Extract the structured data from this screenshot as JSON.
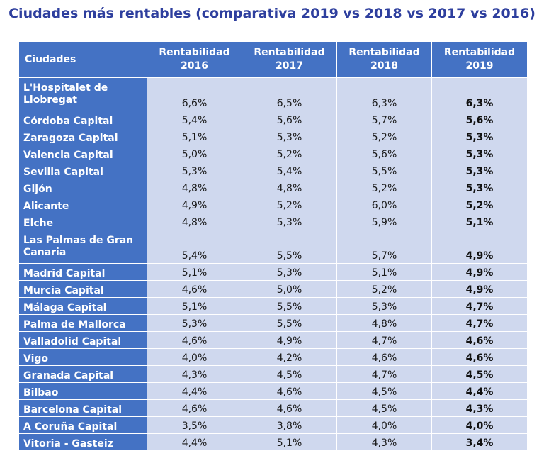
{
  "title": "Ciudades más rentables (comparativa 2019 vs 2018 vs 2017 vs 2016)",
  "colors": {
    "header_bg": "#4472c4",
    "cell_bg": "#cfd8ee",
    "title": "#2e3f9e"
  },
  "chart_data": {
    "type": "table",
    "title": "Ciudades más rentables (comparativa 2019 vs 2018 vs 2017 vs 2016)",
    "columns": [
      "Ciudades",
      "Rentabilidad 2016",
      "Rentabilidad 2017",
      "Rentabilidad 2018",
      "Rentabilidad 2019"
    ],
    "rows": [
      [
        "L'Hospitalet de Llobregat",
        "6,6%",
        "6,5%",
        "6,3%",
        "6,3%"
      ],
      [
        "Córdoba Capital",
        "5,4%",
        "5,6%",
        "5,7%",
        "5,6%"
      ],
      [
        "Zaragoza Capital",
        "5,1%",
        "5,3%",
        "5,2%",
        "5,3%"
      ],
      [
        "Valencia Capital",
        "5,0%",
        "5,2%",
        "5,6%",
        "5,3%"
      ],
      [
        "Sevilla Capital",
        "5,3%",
        "5,4%",
        "5,5%",
        "5,3%"
      ],
      [
        "Gijón",
        "4,8%",
        "4,8%",
        "5,2%",
        "5,3%"
      ],
      [
        "Alicante",
        "4,9%",
        "5,2%",
        "6,0%",
        "5,2%"
      ],
      [
        "Elche",
        "4,8%",
        "5,3%",
        "5,9%",
        "5,1%"
      ],
      [
        "Las Palmas de Gran Canaria",
        "5,4%",
        "5,5%",
        "5,7%",
        "4,9%"
      ],
      [
        "Madrid Capital",
        "5,1%",
        "5,3%",
        "5,1%",
        "4,9%"
      ],
      [
        "Murcia Capital",
        "4,6%",
        "5,0%",
        "5,2%",
        "4,9%"
      ],
      [
        "Málaga Capital",
        "5,1%",
        "5,5%",
        "5,3%",
        "4,7%"
      ],
      [
        " Palma de Mallorca",
        "5,3%",
        "5,5%",
        "4,8%",
        "4,7%"
      ],
      [
        "Valladolid Capital",
        "4,6%",
        "4,9%",
        "4,7%",
        "4,6%"
      ],
      [
        "Vigo",
        "4,0%",
        "4,2%",
        "4,6%",
        "4,6%"
      ],
      [
        "Granada Capital",
        "4,3%",
        "4,5%",
        "4,7%",
        "4,5%"
      ],
      [
        "Bilbao",
        "4,4%",
        "4,6%",
        "4,5%",
        "4,4%"
      ],
      [
        "Barcelona Capital",
        "4,6%",
        "4,6%",
        "4,5%",
        "4,3%"
      ],
      [
        "A Coruña Capital",
        "3,5%",
        "3,8%",
        "4,0%",
        "4,0%"
      ],
      [
        "Vitoria - Gasteiz",
        "4,4%",
        "5,1%",
        "4,3%",
        "3,4%"
      ]
    ]
  }
}
